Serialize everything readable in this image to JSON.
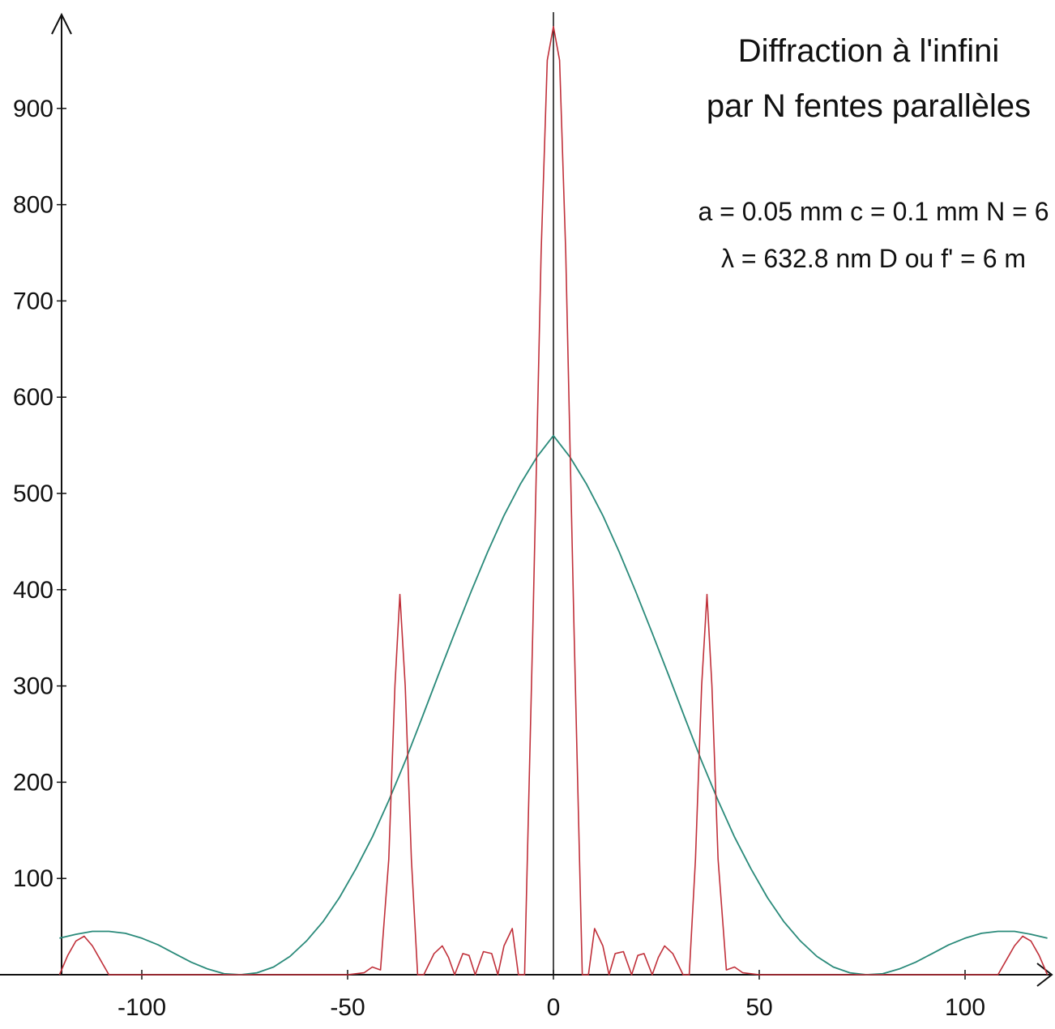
{
  "chart_data": {
    "type": "line",
    "title_lines": [
      "Diffraction à l'infini",
      "par N fentes parallèles"
    ],
    "annotation_lines": [
      "a = 0.05 mm   c = 0.1 mm  N = 6",
      "λ  = 632.8 nm   D ou f' = 6 m"
    ],
    "xlabel": "",
    "ylabel": "",
    "xlim": [
      -120,
      120
    ],
    "ylim": [
      0,
      1000
    ],
    "x_ticks": [
      -100,
      -50,
      0,
      50,
      100
    ],
    "x_tick_labels": [
      "-100",
      "-50",
      "0",
      "50",
      "100"
    ],
    "y_ticks": [
      100,
      200,
      300,
      400,
      500,
      600,
      700,
      800,
      900
    ],
    "y_tick_labels": [
      "100",
      "200",
      "300",
      "400",
      "500",
      "600",
      "700",
      "800",
      "900"
    ],
    "grid": false,
    "series": [
      {
        "color": "#2a8a7a",
        "x": [
          -120,
          -116,
          -112,
          -108,
          -104,
          -100,
          -96,
          -92,
          -88,
          -84,
          -80,
          -76,
          -72,
          -68,
          -64,
          -60,
          -56,
          -52,
          -48,
          -44,
          -40,
          -36,
          -32,
          -28,
          -24,
          -20,
          -16,
          -12,
          -8,
          -4,
          0,
          4,
          8,
          12,
          16,
          20,
          24,
          28,
          32,
          36,
          40,
          44,
          48,
          52,
          56,
          60,
          64,
          68,
          72,
          76,
          80,
          84,
          88,
          92,
          96,
          100,
          104,
          108,
          112,
          116,
          120
        ],
        "y": [
          38,
          42,
          45,
          45,
          43,
          38,
          31,
          22,
          13,
          6,
          1,
          0,
          2,
          8,
          19,
          35,
          55,
          80,
          110,
          143,
          181,
          222,
          266,
          311,
          355,
          398,
          439,
          477,
          510,
          538,
          560,
          538,
          510,
          477,
          439,
          398,
          355,
          311,
          266,
          222,
          181,
          143,
          110,
          80,
          55,
          35,
          19,
          8,
          2,
          0,
          1,
          6,
          13,
          22,
          31,
          38,
          43,
          45,
          45,
          42,
          38
        ]
      },
      {
        "color": "#c0303a",
        "x": [
          -120,
          -118,
          -116,
          -114,
          -112,
          -110,
          -108,
          -105,
          -100,
          -90,
          -80,
          -70,
          -60,
          -50,
          -46,
          -44,
          -42,
          -40,
          -38.5,
          -37.3,
          -36,
          -34.5,
          -33,
          -31.5,
          -29,
          -27,
          -25.5,
          -24,
          -22,
          -20.5,
          -19,
          -17,
          -15,
          -13.5,
          -12,
          -10,
          -8.5,
          -7,
          -5,
          -3,
          -1.5,
          0,
          1.5,
          3,
          5,
          7,
          8.5,
          10,
          12,
          13.5,
          15,
          17,
          19,
          20.5,
          22,
          24,
          25.5,
          27,
          29,
          31.5,
          33,
          34.5,
          36,
          37.3,
          38.5,
          40,
          42,
          44,
          46,
          50,
          60,
          70,
          80,
          90,
          100,
          105,
          108,
          110,
          112,
          114,
          116,
          118,
          120
        ],
        "y": [
          0,
          20,
          35,
          40,
          30,
          15,
          0,
          0,
          0,
          0,
          0,
          0,
          0,
          0,
          2,
          8,
          5,
          120,
          300,
          395,
          300,
          120,
          0,
          0,
          22,
          30,
          18,
          0,
          22,
          20,
          0,
          24,
          22,
          0,
          30,
          48,
          0,
          0,
          360,
          750,
          950,
          985,
          950,
          750,
          360,
          0,
          0,
          48,
          30,
          0,
          22,
          24,
          0,
          20,
          22,
          0,
          18,
          30,
          22,
          0,
          0,
          120,
          300,
          395,
          300,
          120,
          5,
          8,
          2,
          0,
          0,
          0,
          0,
          0,
          0,
          0,
          0,
          15,
          30,
          40,
          35,
          20,
          0
        ]
      }
    ]
  }
}
